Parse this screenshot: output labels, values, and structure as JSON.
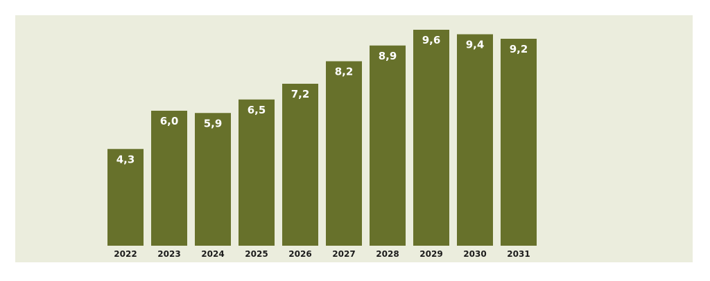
{
  "chart_data": {
    "type": "bar",
    "categories": [
      "2022",
      "2023",
      "2024",
      "2025",
      "2026",
      "2027",
      "2028",
      "2029",
      "2030",
      "2031"
    ],
    "values": [
      4.3,
      6.0,
      5.9,
      6.5,
      7.2,
      8.2,
      8.9,
      9.6,
      9.4,
      9.2
    ],
    "value_labels": [
      "4,3",
      "6,0",
      "5,9",
      "6,5",
      "7,2",
      "8,2",
      "8,9",
      "9,6",
      "9,4",
      "9,2"
    ],
    "title": "",
    "xlabel": "",
    "ylabel": "",
    "ylim": [
      0,
      9.6
    ],
    "grid": false,
    "legend": "none",
    "colors": {
      "bar": "#67712b",
      "background": "#ebeddd",
      "page": "#ffffff",
      "value_text": "#ffffff",
      "tick_text": "#1c1c1c"
    }
  }
}
